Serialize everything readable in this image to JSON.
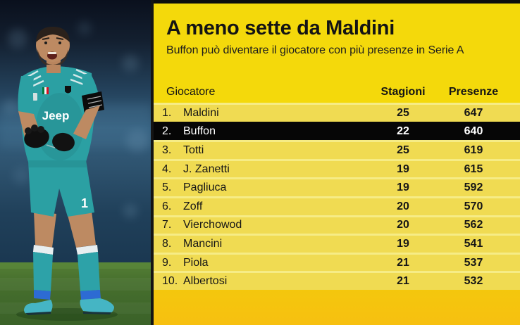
{
  "panel": {
    "title": "A meno sette da Maldini",
    "subtitle": "Buffon può diventare il giocatore con più presenze in Serie A"
  },
  "table": {
    "columns": {
      "player": "Giocatore",
      "seasons": "Stagioni",
      "appearances": "Presenze"
    },
    "rows": [
      {
        "rank": "1.",
        "player": "Maldini",
        "seasons": "25",
        "appearances": "647",
        "highlight": false
      },
      {
        "rank": "2.",
        "player": "Buffon",
        "seasons": "22",
        "appearances": "640",
        "highlight": true
      },
      {
        "rank": "3.",
        "player": "Totti",
        "seasons": "25",
        "appearances": "619",
        "highlight": false
      },
      {
        "rank": "4.",
        "player": "J. Zanetti",
        "seasons": "19",
        "appearances": "615",
        "highlight": false
      },
      {
        "rank": "5.",
        "player": "Pagliuca",
        "seasons": "19",
        "appearances": "592",
        "highlight": false
      },
      {
        "rank": "6.",
        "player": "Zoff",
        "seasons": "20",
        "appearances": "570",
        "highlight": false
      },
      {
        "rank": "7.",
        "player": "Vierchowod",
        "seasons": "20",
        "appearances": "562",
        "highlight": false
      },
      {
        "rank": "8.",
        "player": "Mancini",
        "seasons": "19",
        "appearances": "541",
        "highlight": false
      },
      {
        "rank": "9.",
        "player": "Piola",
        "seasons": "21",
        "appearances": "537",
        "highlight": false
      },
      {
        "rank": "10.",
        "player": "Albertosi",
        "seasons": "21",
        "appearances": "532",
        "highlight": false
      }
    ]
  },
  "photo": {
    "shirt_sponsor": "Jeep",
    "shirt_number": "1"
  },
  "colors": {
    "panel_yellow": "#F4D90B",
    "row_yellow": "#F0DB52",
    "row_divider": "#F6EC86",
    "highlight_black": "#060606",
    "bottom_gold": "#F7C30E",
    "text_dark": "#141414",
    "shirt_teal": "#2BA0A3"
  },
  "chart_data": {
    "type": "table",
    "title": "A meno sette da Maldini",
    "subtitle": "Buffon può diventare il giocatore con più presenze in Serie A",
    "columns": [
      "Giocatore",
      "Stagioni",
      "Presenze"
    ],
    "rows": [
      [
        "Maldini",
        25,
        647
      ],
      [
        "Buffon",
        22,
        640
      ],
      [
        "Totti",
        25,
        619
      ],
      [
        "J. Zanetti",
        19,
        615
      ],
      [
        "Pagliuca",
        19,
        592
      ],
      [
        "Zoff",
        20,
        570
      ],
      [
        "Vierchowod",
        20,
        562
      ],
      [
        "Mancini",
        19,
        541
      ],
      [
        "Piola",
        21,
        537
      ],
      [
        "Albertosi",
        21,
        532
      ]
    ],
    "highlighted_row": "Buffon"
  }
}
